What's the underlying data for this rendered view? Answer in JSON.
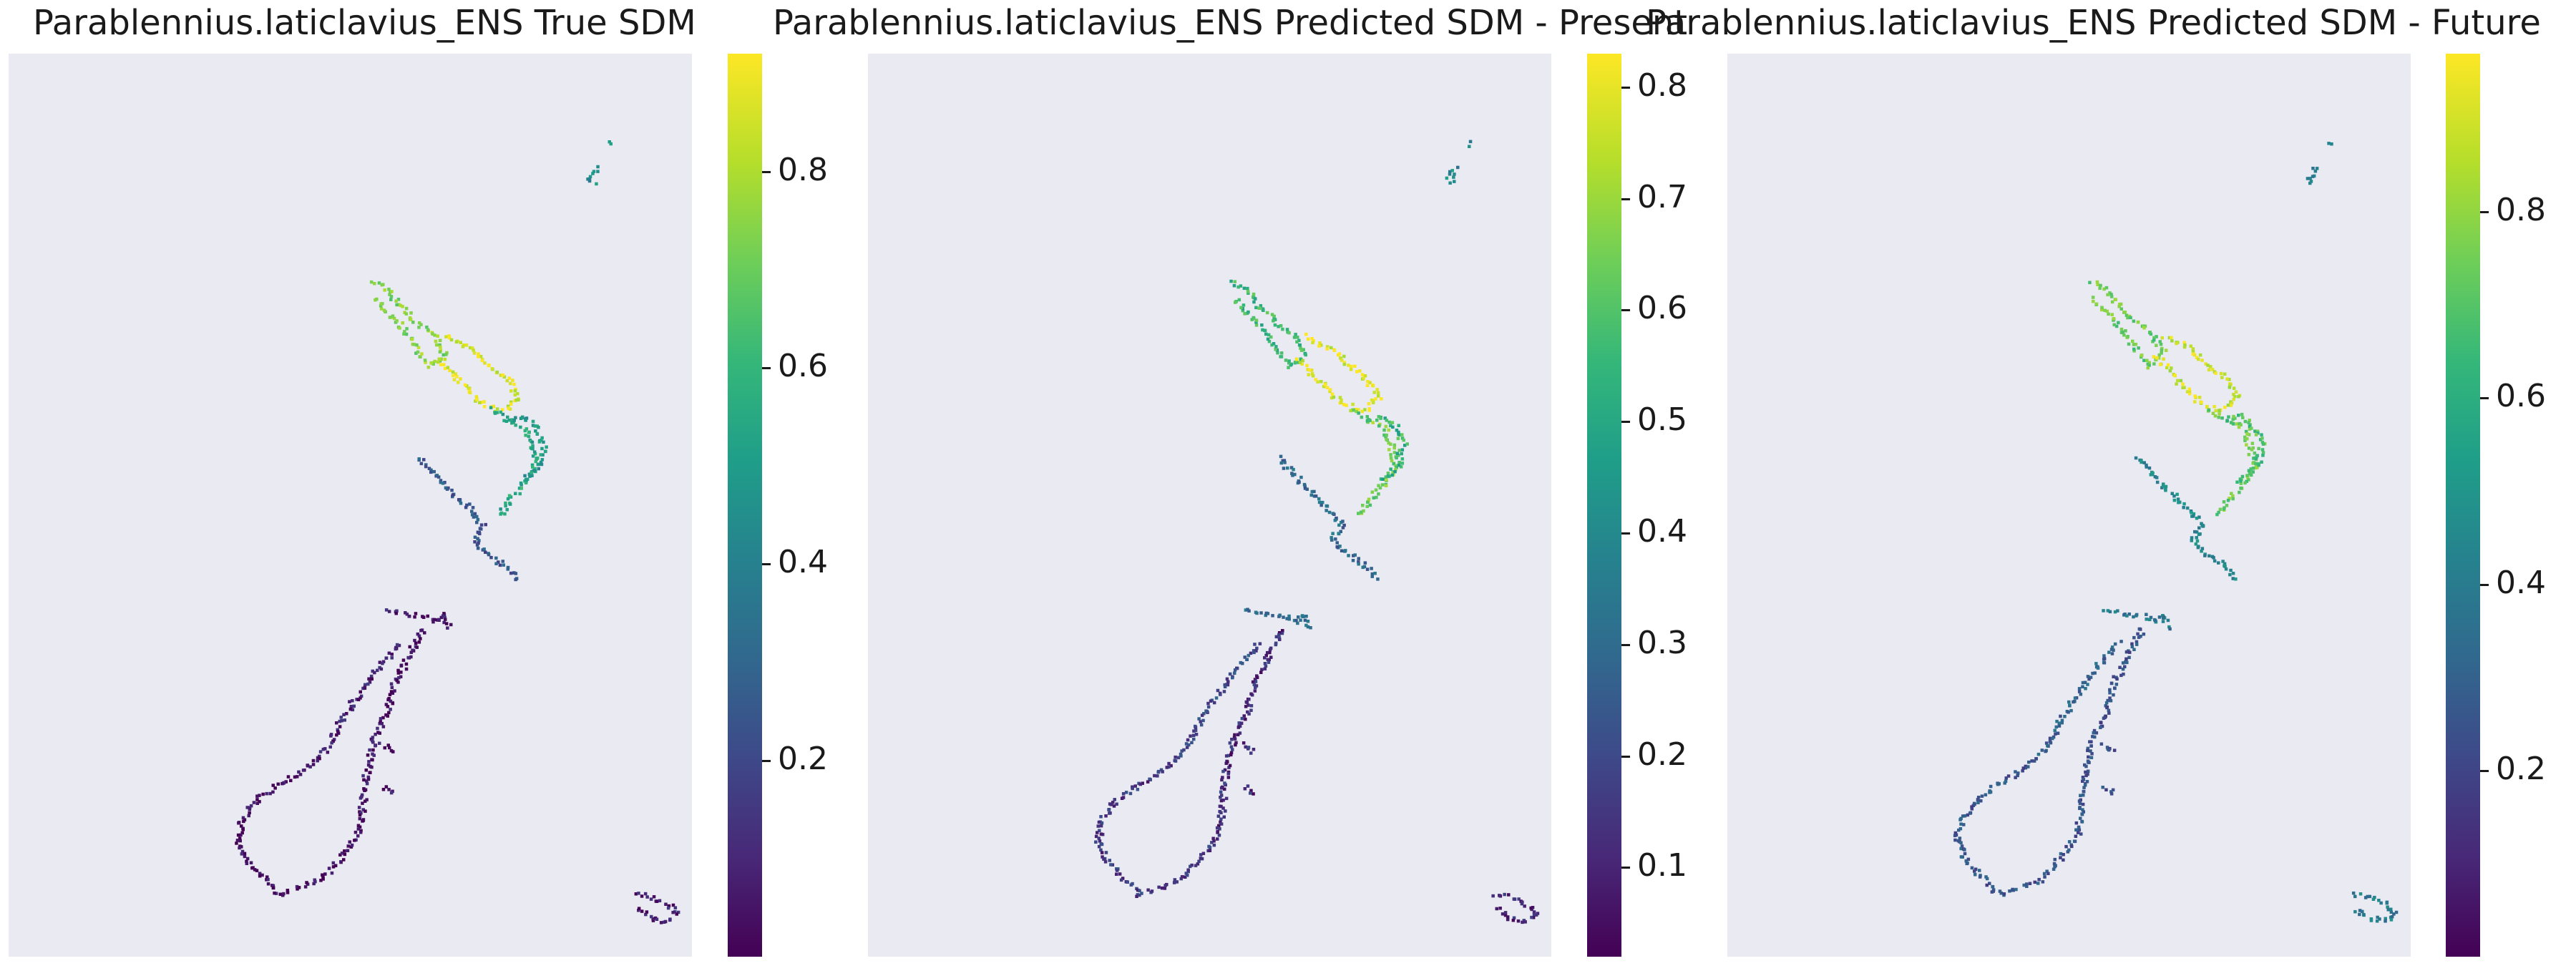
{
  "colors": {
    "background": "#eaeaf2",
    "viridis": [
      "#440154",
      "#482878",
      "#3e4989",
      "#31688e",
      "#26828e",
      "#1f9e89",
      "#35b779",
      "#6ece58",
      "#b5de2b",
      "#fde725"
    ]
  },
  "chart_data": [
    {
      "type": "heatmap",
      "title": "Parablennius.laticlavius_ENS True SDM",
      "colorbar": {
        "min": 0.0,
        "max": 0.92,
        "ticks": [
          "0.2",
          "0.4",
          "0.6",
          "0.8"
        ],
        "tick_values": [
          0.2,
          0.4,
          0.6,
          0.8
        ]
      },
      "grid": false,
      "region_values": {
        "far_north_islets": 0.45,
        "northland": 0.75,
        "auckland_coromandel": 0.88,
        "bay_of_plenty": 0.55,
        "east_cape": 0.5,
        "taranaki_wellington": 0.25,
        "cook_strait_south_coast": 0.05,
        "west_coast_south": 0.08,
        "fiordland_southland": 0.04,
        "east_coast_south": 0.05,
        "chatham_islands": 0.08
      }
    },
    {
      "type": "heatmap",
      "title": "Parablennius.laticlavius_ENS Predicted SDM - Present",
      "colorbar": {
        "min": 0.02,
        "max": 0.83,
        "ticks": [
          "0.1",
          "0.2",
          "0.3",
          "0.4",
          "0.5",
          "0.6",
          "0.7",
          "0.8"
        ],
        "tick_values": [
          0.1,
          0.2,
          0.3,
          0.4,
          0.5,
          0.6,
          0.7,
          0.8
        ]
      },
      "grid": false,
      "region_values": {
        "far_north_islets": 0.4,
        "northland": 0.55,
        "auckland_coromandel": 0.8,
        "bay_of_plenty": 0.65,
        "east_cape": 0.55,
        "taranaki_wellington": 0.3,
        "cook_strait_south_coast": 0.3,
        "west_coast_south": 0.2,
        "fiordland_southland": 0.15,
        "east_coast_south": 0.12,
        "chatham_islands": 0.1
      }
    },
    {
      "type": "heatmap",
      "title": "Parablennius.laticlavius_ENS Predicted SDM - Future",
      "colorbar": {
        "min": 0.0,
        "max": 0.97,
        "ticks": [
          "0.2",
          "0.4",
          "0.6",
          "0.8"
        ],
        "tick_values": [
          0.2,
          0.4,
          0.6,
          0.8
        ]
      },
      "grid": false,
      "region_values": {
        "far_north_islets": 0.4,
        "northland": 0.75,
        "auckland_coromandel": 0.9,
        "bay_of_plenty": 0.75,
        "east_cape": 0.7,
        "taranaki_wellington": 0.45,
        "cook_strait_south_coast": 0.4,
        "west_coast_south": 0.3,
        "fiordland_southland": 0.25,
        "east_coast_south": 0.25,
        "chatham_islands": 0.4
      }
    }
  ]
}
